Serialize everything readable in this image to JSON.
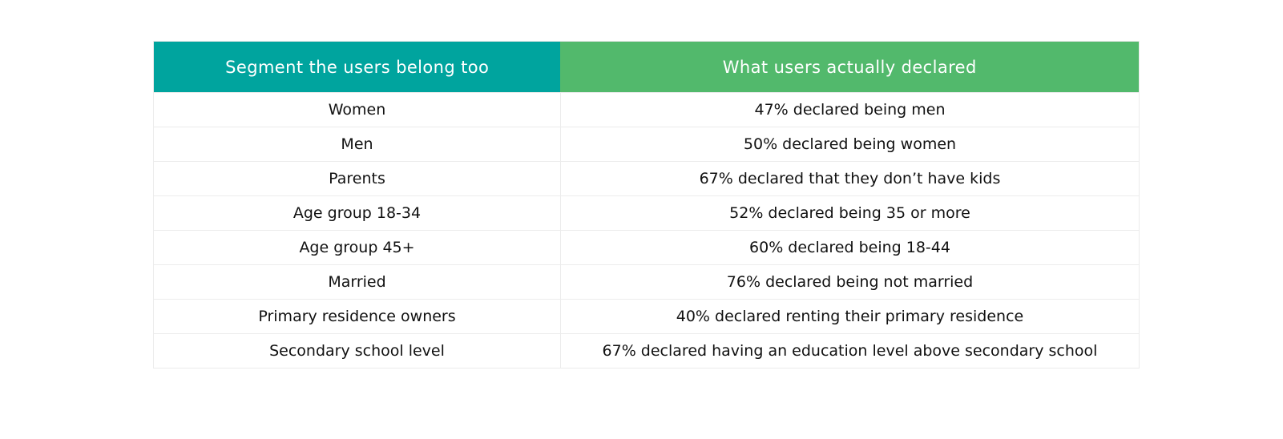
{
  "table": {
    "headers": [
      {
        "label": "Segment the users belong too",
        "color": "#00a49e"
      },
      {
        "label": "What users actually declared",
        "color": "#52b96c"
      }
    ],
    "rows": [
      {
        "segment": "Women",
        "declared": "47% declared being men"
      },
      {
        "segment": "Men",
        "declared": "50% declared being women"
      },
      {
        "segment": "Parents",
        "declared": "67% declared that they don’t have kids"
      },
      {
        "segment": "Age group 18-34",
        "declared": "52% declared being 35 or more"
      },
      {
        "segment": "Age group 45+",
        "declared": "60% declared being 18-44"
      },
      {
        "segment": "Married",
        "declared": "76% declared being not married"
      },
      {
        "segment": "Primary residence owners",
        "declared": "40% declared renting their primary residence"
      },
      {
        "segment": "Secondary school level",
        "declared": "67% declared having an education level above secondary school"
      }
    ]
  },
  "chart_data": {
    "type": "table",
    "title": "",
    "columns": [
      "Segment the users belong too",
      "What users actually declared"
    ],
    "rows": [
      [
        "Women",
        "47% declared being men"
      ],
      [
        "Men",
        "50% declared being women"
      ],
      [
        "Parents",
        "67% declared that they don’t have kids"
      ],
      [
        "Age group 18-34",
        "52% declared being 35 or more"
      ],
      [
        "Age group 45+",
        "60% declared being 18-44"
      ],
      [
        "Married",
        "76% declared being not married"
      ],
      [
        "Primary residence owners",
        "40% declared renting their primary residence"
      ],
      [
        "Secondary school level",
        "67% declared having an education level above secondary school"
      ]
    ],
    "declared_percentages": [
      47,
      50,
      67,
      52,
      60,
      76,
      40,
      67
    ],
    "header_colors": [
      "#00a49e",
      "#52b96c"
    ],
    "layout": {
      "grid": "light-gray row separators",
      "alignment": "center"
    }
  }
}
